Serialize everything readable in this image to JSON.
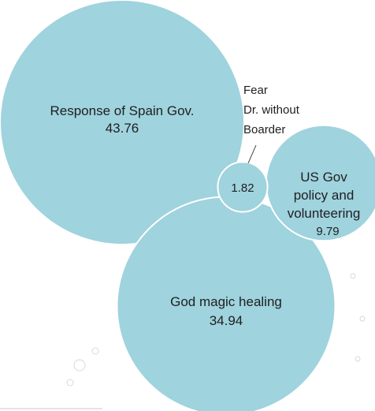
{
  "chart_data": {
    "type": "bubble",
    "items": [
      {
        "label_lines": [
          "Response of Spain Gov."
        ],
        "value": 43.76
      },
      {
        "label_lines": [
          "God magic healing"
        ],
        "value": 34.94
      },
      {
        "label_lines": [
          "US Gov",
          "policy and",
          "volunteering"
        ],
        "value": 9.79
      },
      {
        "label_lines": [
          "Fear",
          "Dr. without",
          "Boarder"
        ],
        "value": 1.82
      }
    ]
  }
}
